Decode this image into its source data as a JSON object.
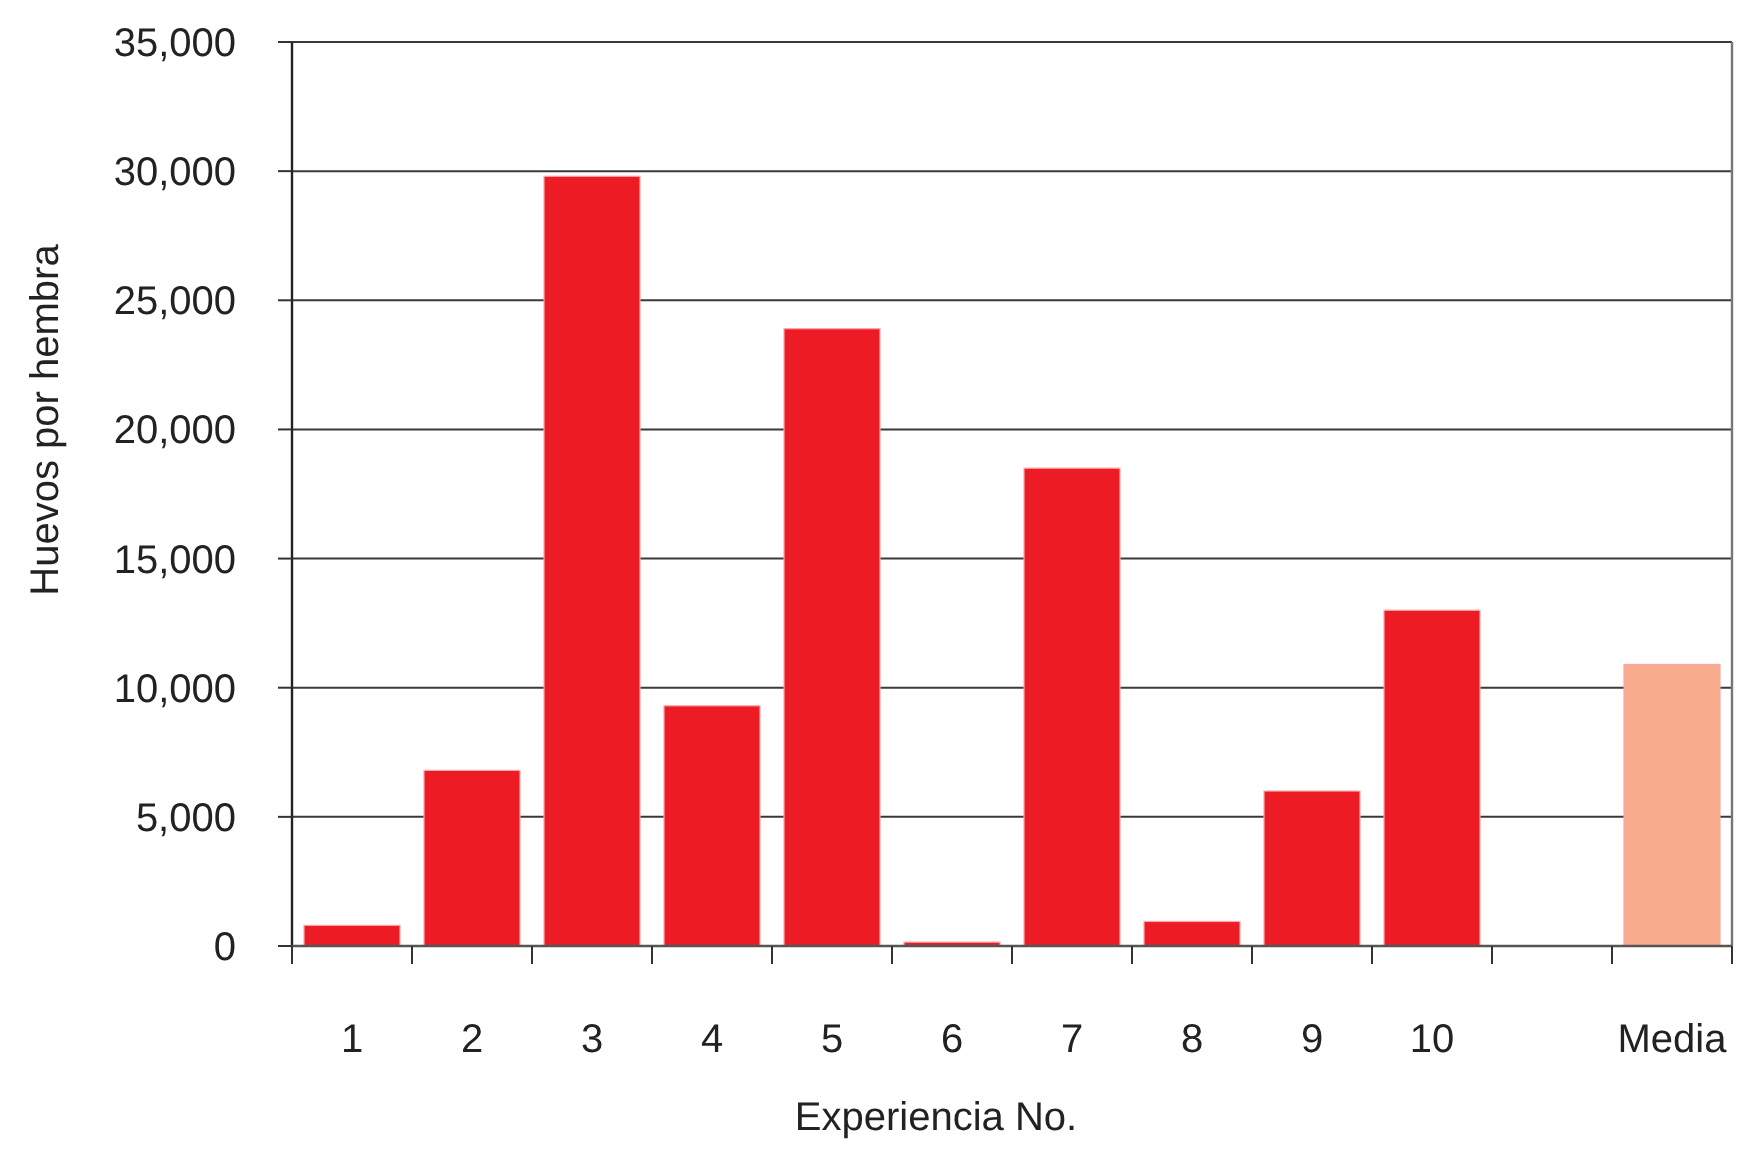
{
  "chart_data": {
    "type": "bar",
    "xlabel": "Experiencia No.",
    "ylabel": "Huevos por hembra",
    "categories": [
      "1",
      "2",
      "3",
      "4",
      "5",
      "6",
      "7",
      "8",
      "9",
      "10",
      null,
      "Media"
    ],
    "values": [
      800,
      6800,
      29800,
      9300,
      23900,
      150,
      18500,
      950,
      6000,
      13000,
      null,
      10900
    ],
    "colors": [
      "#ed1c24",
      "#ed1c24",
      "#ed1c24",
      "#ed1c24",
      "#ed1c24",
      "#ed1c24",
      "#ed1c24",
      "#ed1c24",
      "#ed1c24",
      "#ed1c24",
      null,
      "#f9ab8e"
    ],
    "ylim": [
      0,
      35000
    ],
    "yticks": [
      0,
      {
        "value": 5000,
        "label": "5,000"
      },
      {
        "value": 10000,
        "label": "10,000"
      },
      {
        "value": 15000,
        "label": "15,000"
      },
      {
        "value": 20000,
        "label": "20,000"
      },
      {
        "value": 25000,
        "label": "25,000"
      },
      {
        "value": 30000,
        "label": "30,000"
      },
      {
        "value": 35000,
        "label": "35,000"
      }
    ],
    "grid": "y"
  }
}
